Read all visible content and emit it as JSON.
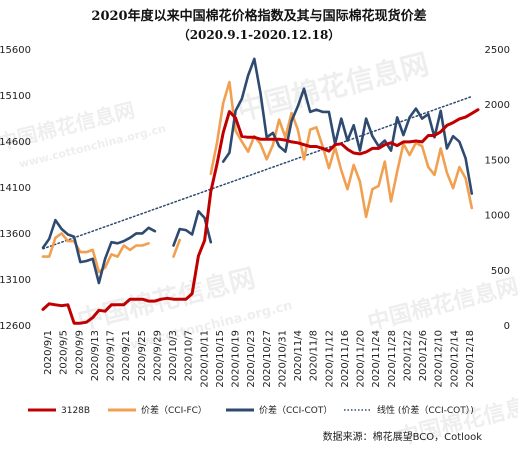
{
  "chart_data": {
    "type": "line",
    "title": "2020年度以来中国棉花价格指数及其与国际棉花现货价差",
    "subtitle": "（2020.9.1-2020.12.18）",
    "y_left": {
      "ticks": [
        12600,
        13100,
        13600,
        14100,
        14600,
        15100,
        15600
      ],
      "range": [
        12600,
        15600
      ]
    },
    "y_right": {
      "ticks": [
        0,
        500,
        1000,
        1500,
        2000,
        2500
      ],
      "range": [
        0,
        2500
      ]
    },
    "x_ticks": [
      "2020/9/1",
      "2020/9/5",
      "2020/9/9",
      "2020/9/13",
      "2020/9/17",
      "2020/9/21",
      "2020/9/25",
      "2020/9/29",
      "2020/10/3",
      "2020/10/7",
      "2020/10/11",
      "2020/10/15",
      "2020/10/19",
      "2020/10/23",
      "2020/10/27",
      "2020/10/31",
      "2020/11/4",
      "2020/11/8",
      "2020/11/12",
      "2020/11/16",
      "2020/11/20",
      "2020/11/24",
      "2020/11/28",
      "2020/12/2",
      "2020/12/6",
      "2020/12/10",
      "2020/12/14",
      "2020/12/18"
    ],
    "series": [
      {
        "name": "3128B",
        "axis": "left",
        "color": "#c00000",
        "style": "solid",
        "points": [
          [
            0,
            12770
          ],
          [
            1,
            12830
          ],
          [
            2,
            12820
          ],
          [
            3,
            12810
          ],
          [
            4,
            12820
          ],
          [
            5,
            12620
          ],
          [
            6,
            12620
          ],
          [
            7,
            12630
          ],
          [
            8,
            12680
          ],
          [
            9,
            12760
          ],
          [
            10,
            12750
          ],
          [
            11,
            12820
          ],
          [
            12,
            12820
          ],
          [
            13,
            12820
          ],
          [
            14,
            12880
          ],
          [
            15,
            12880
          ],
          [
            16,
            12880
          ],
          [
            17,
            12860
          ],
          [
            18,
            12860
          ],
          [
            19,
            12880
          ],
          [
            20,
            12890
          ],
          [
            21,
            12880
          ],
          [
            22,
            12880
          ],
          [
            23,
            12880
          ],
          [
            24,
            12940
          ],
          [
            25,
            13350
          ],
          [
            26,
            13520
          ],
          [
            27,
            14050
          ],
          [
            28,
            14350
          ],
          [
            29,
            14690
          ],
          [
            30,
            14920
          ],
          [
            31,
            14850
          ],
          [
            32,
            14650
          ],
          [
            33,
            14640
          ],
          [
            34,
            14640
          ],
          [
            35,
            14620
          ],
          [
            36,
            14620
          ],
          [
            37,
            14620
          ],
          [
            38,
            14620
          ],
          [
            39,
            14610
          ],
          [
            40,
            14590
          ],
          [
            41,
            14580
          ],
          [
            42,
            14560
          ],
          [
            43,
            14540
          ],
          [
            44,
            14540
          ],
          [
            45,
            14520
          ],
          [
            46,
            14490
          ],
          [
            47,
            14560
          ],
          [
            48,
            14570
          ],
          [
            49,
            14510
          ],
          [
            50,
            14470
          ],
          [
            51,
            14460
          ],
          [
            52,
            14480
          ],
          [
            53,
            14520
          ],
          [
            54,
            14520
          ],
          [
            55,
            14560
          ],
          [
            56,
            14580
          ],
          [
            57,
            14550
          ],
          [
            58,
            14590
          ],
          [
            59,
            14590
          ],
          [
            60,
            14600
          ],
          [
            61,
            14590
          ],
          [
            62,
            14660
          ],
          [
            63,
            14660
          ],
          [
            64,
            14700
          ],
          [
            65,
            14770
          ],
          [
            66,
            14800
          ],
          [
            67,
            14840
          ],
          [
            68,
            14860
          ],
          [
            69,
            14900
          ],
          [
            70,
            14940
          ]
        ]
      },
      {
        "name": "价差（CCI-FC）",
        "axis": "right",
        "color": "#f0a050",
        "style": "solid",
        "points": [
          [
            0,
            620
          ],
          [
            1,
            620
          ],
          [
            2,
            790
          ],
          [
            3,
            830
          ],
          [
            4,
            760
          ],
          [
            5,
            760
          ],
          [
            6,
            660
          ],
          [
            7,
            660
          ],
          [
            8,
            680
          ],
          [
            9,
            480
          ],
          [
            10,
            520
          ],
          [
            11,
            640
          ],
          [
            12,
            620
          ],
          [
            13,
            720
          ],
          [
            14,
            680
          ],
          [
            15,
            720
          ],
          [
            16,
            720
          ],
          [
            17,
            740
          ],
          [
            null,
            null
          ],
          [
            21,
            620
          ],
          [
            22,
            770
          ],
          [
            null,
            null
          ],
          [
            27,
            1370
          ],
          [
            28,
            1650
          ],
          [
            29,
            2010
          ],
          [
            30,
            2200
          ],
          [
            31,
            1760
          ],
          [
            32,
            1660
          ],
          [
            33,
            1570
          ],
          [
            34,
            1710
          ],
          [
            35,
            1640
          ],
          [
            36,
            1500
          ],
          [
            37,
            1630
          ],
          [
            38,
            1860
          ],
          [
            39,
            1700
          ],
          [
            40,
            1920
          ],
          [
            41,
            1770
          ],
          [
            42,
            1500
          ],
          [
            43,
            1770
          ],
          [
            44,
            1790
          ],
          [
            45,
            1620
          ],
          [
            46,
            1420
          ],
          [
            47,
            1610
          ],
          [
            48,
            1400
          ],
          [
            49,
            1230
          ],
          [
            50,
            1450
          ],
          [
            51,
            1300
          ],
          [
            52,
            980
          ],
          [
            53,
            1230
          ],
          [
            54,
            1260
          ],
          [
            55,
            1480
          ],
          [
            56,
            1120
          ],
          [
            57,
            1390
          ],
          [
            58,
            1640
          ],
          [
            59,
            1540
          ],
          [
            60,
            1650
          ],
          [
            61,
            1620
          ],
          [
            62,
            1430
          ],
          [
            63,
            1360
          ],
          [
            64,
            1600
          ],
          [
            65,
            1380
          ],
          [
            66,
            1240
          ],
          [
            67,
            1430
          ],
          [
            68,
            1330
          ],
          [
            69,
            1060
          ]
        ]
      },
      {
        "name": "价差（CCI-COT）",
        "axis": "right",
        "color": "#2e4a70",
        "style": "solid",
        "points": [
          [
            0,
            700
          ],
          [
            1,
            780
          ],
          [
            2,
            950
          ],
          [
            3,
            870
          ],
          [
            4,
            820
          ],
          [
            5,
            800
          ],
          [
            6,
            570
          ],
          [
            7,
            580
          ],
          [
            8,
            600
          ],
          [
            9,
            380
          ],
          [
            10,
            600
          ],
          [
            11,
            750
          ],
          [
            12,
            740
          ],
          [
            13,
            760
          ],
          [
            14,
            790
          ],
          [
            15,
            830
          ],
          [
            16,
            830
          ],
          [
            17,
            880
          ],
          [
            18,
            850
          ],
          [
            null,
            null
          ],
          [
            21,
            720
          ],
          [
            22,
            870
          ],
          [
            23,
            860
          ],
          [
            24,
            820
          ],
          [
            25,
            1030
          ],
          [
            26,
            970
          ],
          [
            27,
            750
          ],
          [
            null,
            null
          ],
          [
            29,
            1480
          ],
          [
            30,
            1560
          ],
          [
            31,
            1940
          ],
          [
            32,
            2050
          ],
          [
            33,
            2260
          ],
          [
            34,
            2410
          ],
          [
            35,
            2100
          ],
          [
            36,
            1700
          ],
          [
            37,
            1740
          ],
          [
            38,
            1620
          ],
          [
            39,
            1570
          ],
          [
            40,
            1850
          ],
          [
            41,
            1980
          ],
          [
            42,
            2140
          ],
          [
            43,
            1930
          ],
          [
            44,
            1950
          ],
          [
            45,
            1930
          ],
          [
            46,
            1930
          ],
          [
            47,
            1640
          ],
          [
            48,
            1870
          ],
          [
            49,
            1670
          ],
          [
            50,
            1810
          ],
          [
            51,
            1580
          ],
          [
            52,
            1870
          ],
          [
            53,
            1710
          ],
          [
            54,
            1620
          ],
          [
            55,
            1670
          ],
          [
            56,
            1580
          ],
          [
            57,
            1880
          ],
          [
            58,
            1720
          ],
          [
            59,
            1880
          ],
          [
            60,
            1960
          ],
          [
            61,
            1870
          ],
          [
            62,
            1910
          ],
          [
            63,
            1700
          ],
          [
            64,
            1940
          ],
          [
            65,
            1600
          ],
          [
            66,
            1710
          ],
          [
            67,
            1660
          ],
          [
            68,
            1510
          ],
          [
            69,
            1190
          ]
        ]
      },
      {
        "name": "线性 (价差（CCI-COT）)",
        "axis": "right",
        "color": "#2e4a70",
        "style": "dotted",
        "points": [
          [
            0,
            690
          ],
          [
            69,
            2070
          ]
        ]
      }
    ],
    "x_max_index": 70,
    "grid": false,
    "legend_position": "bottom"
  },
  "source_note": "数据来源：棉花展望BCO，Cotlook",
  "watermark_lines": [
    "中国棉花信息网",
    "www.cottonchina.org.cn",
    "中国棉花信息网"
  ]
}
